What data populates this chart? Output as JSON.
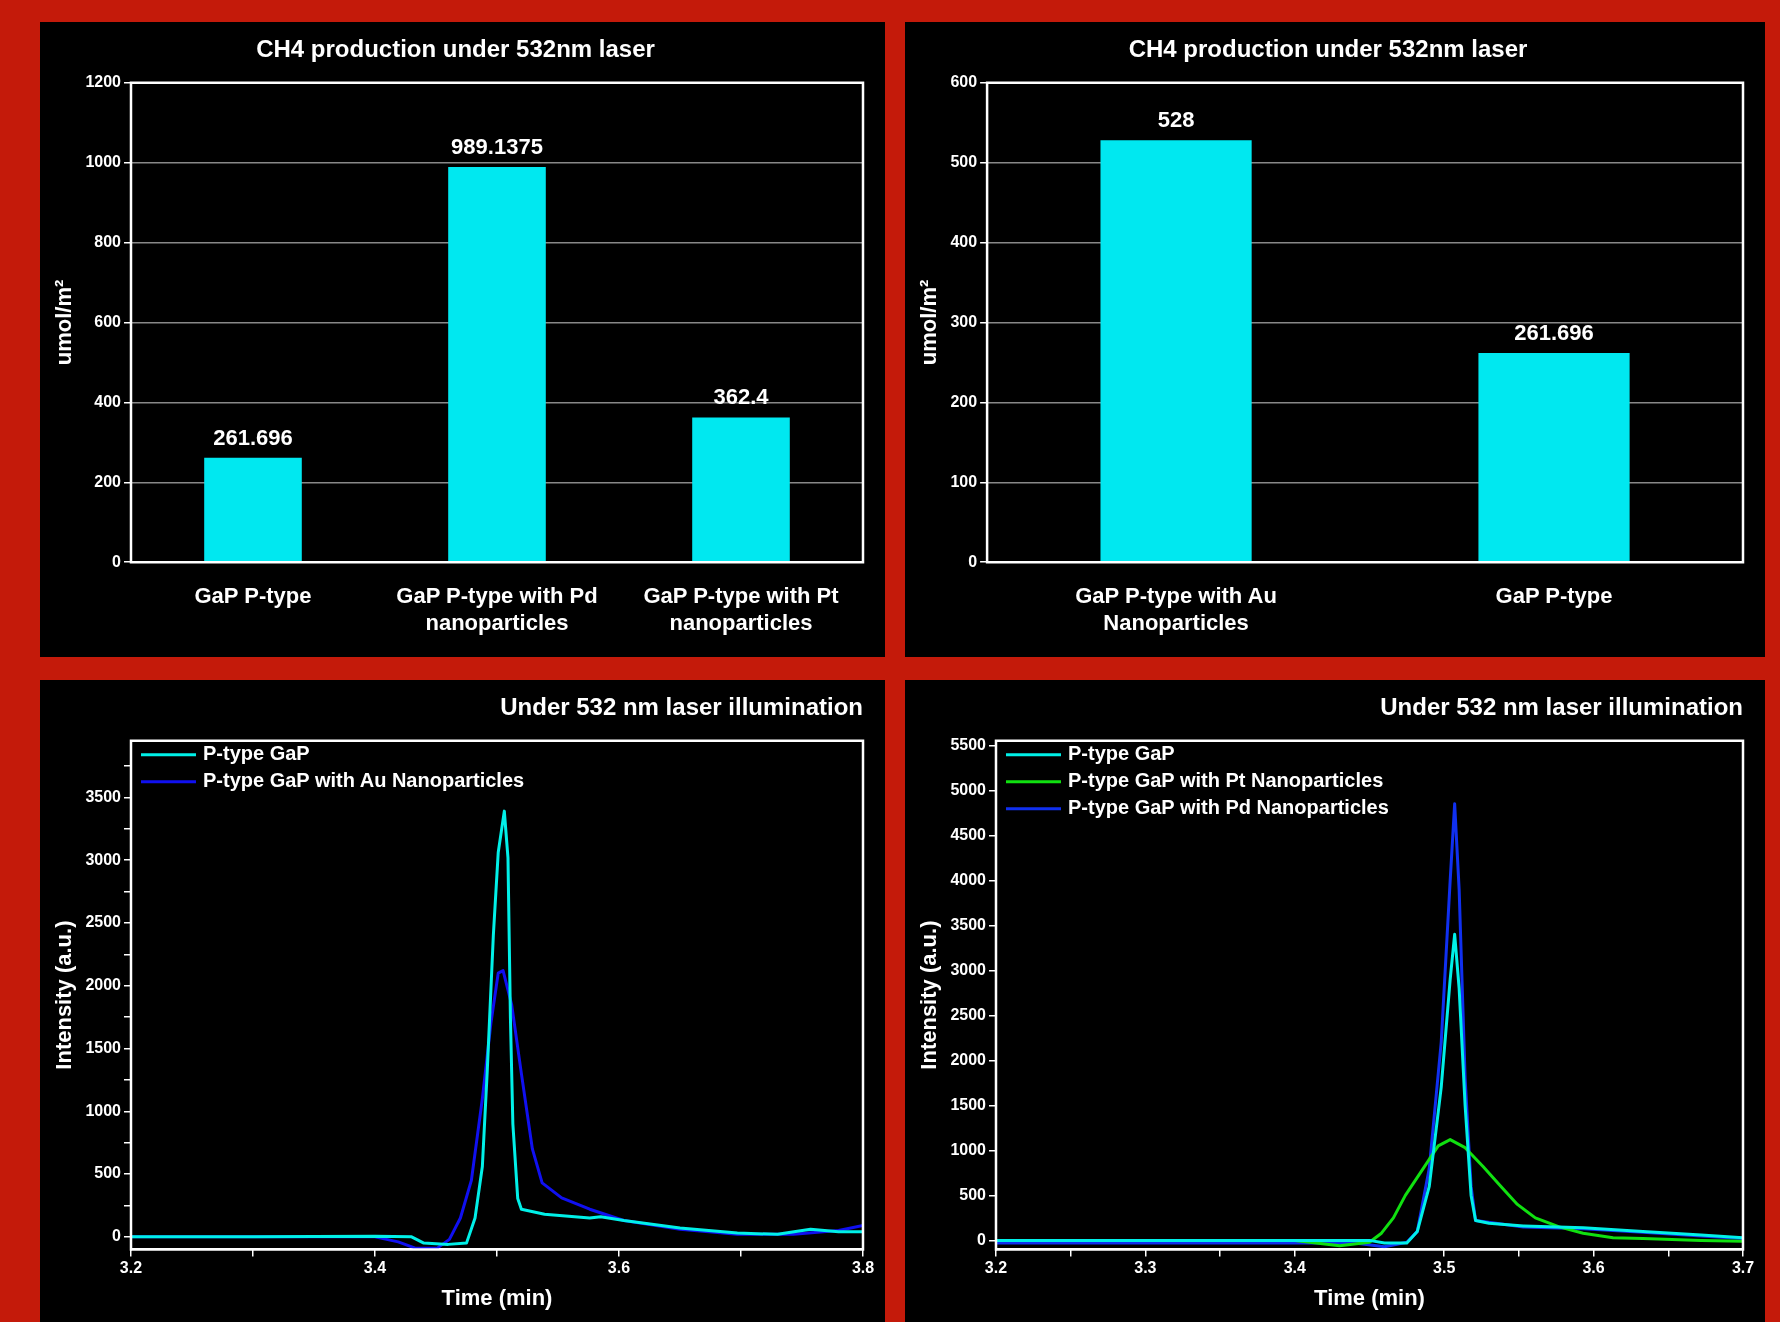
{
  "chart_data": [
    {
      "type": "bar",
      "title": "CH4 production under 532nm laser",
      "ylabel": "umol/m²",
      "categories": [
        "GaP P-type",
        "GaP P-type with Pd nanoparticles",
        "GaP P-type with Pt nanoparticles"
      ],
      "values": [
        261.696,
        989.1375,
        362.4
      ],
      "color": "#00e8f0",
      "ylim": [
        0,
        1200
      ],
      "yticks": [
        0,
        200,
        400,
        600,
        800,
        1000,
        1200
      ],
      "grid": "y",
      "data_labels": true
    },
    {
      "type": "bar",
      "title": "CH4 production under 532nm laser",
      "ylabel": "umol/m²",
      "categories": [
        "GaP P-type with Au Nanoparticles",
        "GaP P-type"
      ],
      "values": [
        528,
        261.696
      ],
      "color": "#00e8f0",
      "ylim": [
        0,
        600
      ],
      "yticks": [
        0,
        100,
        200,
        300,
        400,
        500,
        600
      ],
      "grid": "y",
      "data_labels": true
    },
    {
      "type": "line",
      "title": "Under 532 nm laser illumination",
      "xlabel": "Time (min)",
      "ylabel": "Intensity (a.u.)",
      "xlim": [
        3.2,
        3.8
      ],
      "xticks": [
        3.2,
        {
          "value": 3.3,
          "label": null
        },
        3.4,
        {
          "value": 3.5,
          "label": null
        },
        3.6,
        {
          "value": 3.7,
          "label": null
        },
        3.8
      ],
      "ylim": [
        -100,
        3950
      ],
      "yticks": [
        0,
        {
          "value": 250,
          "label": null
        },
        500,
        {
          "value": 750,
          "label": null
        },
        1000,
        {
          "value": 1250,
          "label": null
        },
        1500,
        {
          "value": 1750,
          "label": null
        },
        2000,
        {
          "value": 2250,
          "label": null
        },
        2500,
        {
          "value": 2750,
          "label": null
        },
        3000,
        {
          "value": 3250,
          "label": null
        },
        3500,
        {
          "value": 3750,
          "label": null
        }
      ],
      "grid": false,
      "legend": "top left",
      "marker": "none",
      "line_style": "solid",
      "series": [
        {
          "name": "P-type GaP",
          "color": "#00f0e8",
          "x": [
            3.2,
            3.3,
            3.4,
            3.43,
            3.44,
            3.46,
            3.475,
            3.482,
            3.488,
            3.492,
            3.497,
            3.501,
            3.506,
            3.509,
            3.511,
            3.513,
            3.517,
            3.52,
            3.539,
            3.576,
            3.585,
            3.604,
            3.65,
            3.697,
            3.73,
            3.757,
            3.78,
            3.8
          ],
          "values": [
            0,
            0,
            5,
            0,
            -50,
            -60,
            -50,
            150,
            560,
            1320,
            2400,
            3060,
            3390,
            3017,
            1745,
            900,
            305,
            220,
            180,
            150,
            160,
            130,
            70,
            30,
            20,
            60,
            40,
            40
          ]
        },
        {
          "name": "P-type GaP with Au Nanoparticles",
          "color": "#1010f0",
          "x": [
            3.2,
            3.3,
            3.4,
            3.419,
            3.433,
            3.451,
            3.461,
            3.47,
            3.479,
            3.488,
            3.495,
            3.501,
            3.505,
            3.512,
            3.52,
            3.529,
            3.537,
            3.553,
            3.576,
            3.604,
            3.65,
            3.697,
            3.743,
            3.78,
            3.8
          ],
          "values": [
            0,
            0,
            0,
            -40,
            -90,
            -90,
            -20,
            150,
            450,
            1100,
            1700,
            2100,
            2120,
            1850,
            1300,
            700,
            430,
            310,
            220,
            130,
            60,
            20,
            20,
            50,
            90
          ]
        }
      ]
    },
    {
      "type": "line",
      "title": "Under 532 nm laser illumination",
      "xlabel": "Time (min)",
      "ylabel": "Intensity (a.u.)",
      "xlim": [
        3.2,
        3.7
      ],
      "xticks": [
        3.2,
        {
          "value": 3.25,
          "label": null
        },
        3.3,
        {
          "value": 3.35,
          "label": null
        },
        3.4,
        {
          "value": 3.45,
          "label": null
        },
        3.5,
        {
          "value": 3.55,
          "label": null
        },
        3.6,
        {
          "value": 3.65,
          "label": null
        },
        3.7
      ],
      "ylim": [
        -100,
        5550
      ],
      "yticks": [
        0,
        500,
        1000,
        1500,
        2000,
        2500,
        3000,
        3500,
        4000,
        4500,
        5000,
        5500
      ],
      "grid": false,
      "legend": "top left",
      "marker": "none",
      "line_style": "solid",
      "series": [
        {
          "name": "P-type GaP",
          "color": "#00f0e8",
          "x": [
            3.2,
            3.3,
            3.4,
            3.45,
            3.46,
            3.475,
            3.482,
            3.49,
            3.498,
            3.504,
            3.507,
            3.51,
            3.514,
            3.518,
            3.521,
            3.53,
            3.553,
            3.593,
            3.633,
            3.672,
            3.7
          ],
          "values": [
            0,
            0,
            0,
            0,
            -30,
            -30,
            100,
            600,
            1700,
            2900,
            3400,
            2800,
            1500,
            500,
            220,
            190,
            160,
            140,
            100,
            60,
            30
          ]
        },
        {
          "name": "P-type GaP with Pt Nanoparticles",
          "color": "#10e010",
          "x": [
            3.2,
            3.3,
            3.4,
            3.43,
            3.45,
            3.458,
            3.466,
            3.474,
            3.486,
            3.496,
            3.504,
            3.514,
            3.526,
            3.538,
            3.549,
            3.561,
            3.577,
            3.593,
            3.613,
            3.633,
            3.672,
            3.7
          ],
          "values": [
            0,
            0,
            0,
            -60,
            -20,
            80,
            250,
            500,
            800,
            1050,
            1120,
            1030,
            820,
            600,
            400,
            250,
            150,
            80,
            30,
            20,
            0,
            -10
          ]
        },
        {
          "name": "P-type GaP with Pd Nanoparticles",
          "color": "#1030f0",
          "x": [
            3.2,
            3.3,
            3.4,
            3.44,
            3.46,
            3.475,
            3.482,
            3.49,
            3.498,
            3.504,
            3.507,
            3.51,
            3.514,
            3.518,
            3.521,
            3.553,
            3.593,
            3.633,
            3.672,
            3.7
          ],
          "values": [
            -30,
            -30,
            -30,
            -30,
            -70,
            -20,
            100,
            800,
            2200,
            4000,
            4850,
            3900,
            1800,
            600,
            220,
            150,
            130,
            90,
            50,
            20
          ]
        }
      ]
    }
  ]
}
